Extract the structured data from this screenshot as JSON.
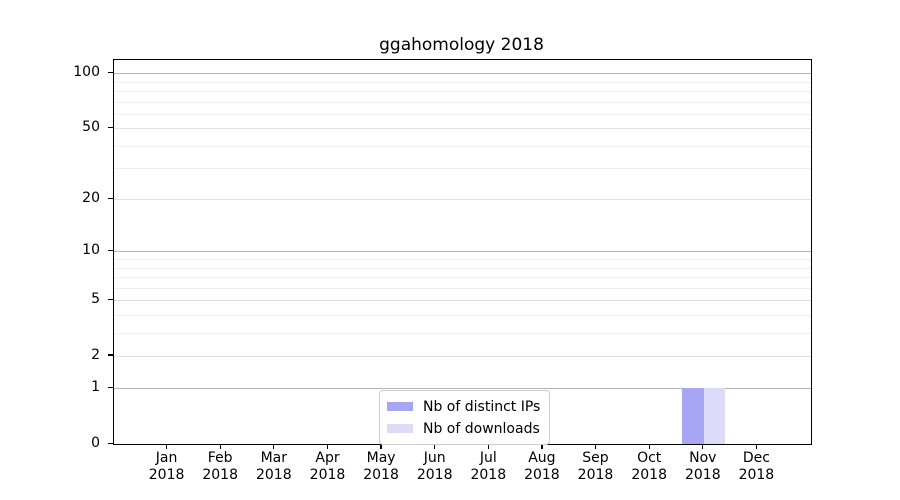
{
  "chart_data": {
    "type": "bar",
    "title": "ggahomology 2018",
    "x": {
      "months": [
        "Jan",
        "Feb",
        "Mar",
        "Apr",
        "May",
        "Jun",
        "Jul",
        "Aug",
        "Sep",
        "Oct",
        "Nov",
        "Dec"
      ],
      "year": "2018"
    },
    "categories": [
      "Jan 2018",
      "Feb 2018",
      "Mar 2018",
      "Apr 2018",
      "May 2018",
      "Jun 2018",
      "Jul 2018",
      "Aug 2018",
      "Sep 2018",
      "Oct 2018",
      "Nov 2018",
      "Dec 2018"
    ],
    "series": [
      {
        "name": "Nb of distinct IPs",
        "color": "#a6a6f4",
        "values": [
          0,
          0,
          0,
          0,
          0,
          0,
          0,
          0,
          0,
          0,
          1,
          0
        ]
      },
      {
        "name": "Nb of downloads",
        "color": "#dbdbf8",
        "values": [
          0,
          0,
          0,
          0,
          0,
          0,
          0,
          0,
          0,
          0,
          1,
          0
        ]
      }
    ],
    "y": {
      "tick_values": [
        0,
        1,
        2,
        5,
        10,
        20,
        50,
        100
      ],
      "tick_labels": [
        "0",
        "1",
        "2",
        "5",
        "10",
        "20",
        "50",
        "100"
      ],
      "minor_tick_values": [
        3,
        4,
        6,
        7,
        8,
        9,
        30,
        40,
        60,
        70,
        80,
        90
      ],
      "emphasized_grid_values": [
        1,
        10,
        100
      ],
      "scale": "log(1+x)",
      "ylim": [
        0,
        125
      ]
    },
    "legend": {
      "position": "lower center",
      "entries": [
        "Nb of distinct IPs",
        "Nb of downloads"
      ]
    },
    "grid": true,
    "colors": {
      "grid_major": "#b5b5b5",
      "grid_mid": "#e2e2e2",
      "grid_minor": "#efefef",
      "axis": "#000000",
      "legend_border": "#cccccc",
      "background": "#ffffff"
    }
  }
}
